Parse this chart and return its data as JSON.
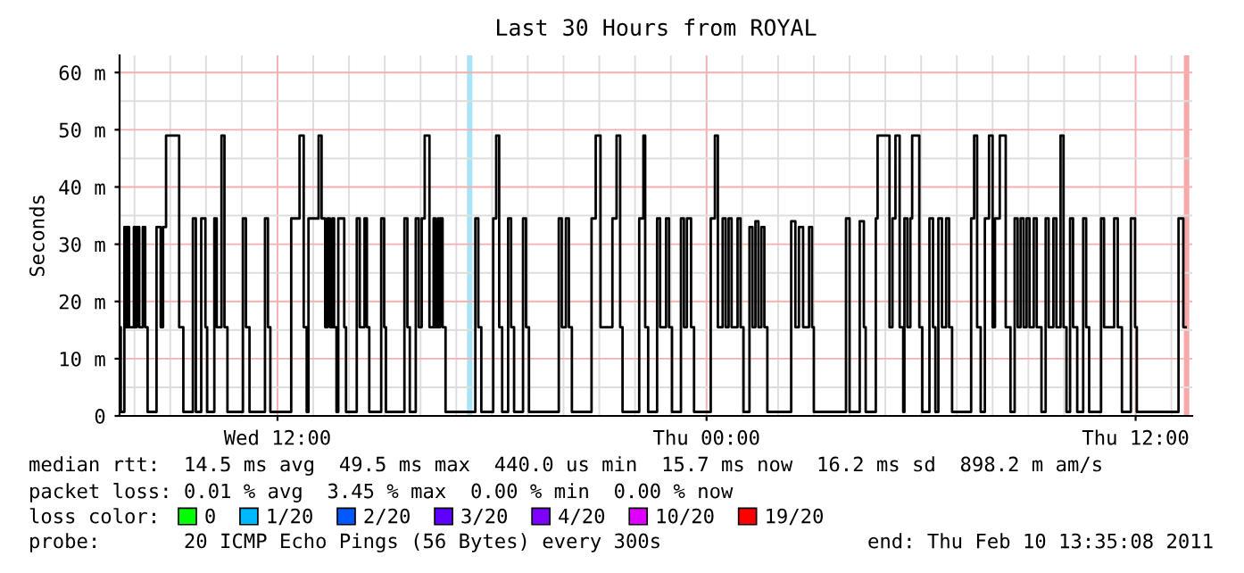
{
  "chart_data": {
    "type": "step",
    "title": "Last 30 Hours from ROYAL",
    "ylabel": "Seconds",
    "xlim": [
      "2011-02-09T07:35",
      "2011-02-10T13:35"
    ],
    "xticks": [
      {
        "value": "2011-02-09T12:00",
        "label": "Wed 12:00"
      },
      {
        "value": "2011-02-10T00:00",
        "label": "Thu 00:00"
      },
      {
        "value": "2011-02-10T12:00",
        "label": "Thu 12:00"
      }
    ],
    "ylim": [
      0,
      63
    ],
    "yticks": [
      0,
      {
        "value": 10,
        "label": "10 m"
      },
      {
        "value": 20,
        "label": "20 m"
      },
      {
        "value": 30,
        "label": "30 m"
      },
      {
        "value": 40,
        "label": "40 m"
      },
      {
        "value": 50,
        "label": "50 m"
      },
      {
        "value": 60,
        "label": "60 m"
      }
    ],
    "grid": true,
    "legend": "bottom",
    "legend_title": "loss color:",
    "bands": [
      {
        "axis": "x",
        "from": "2011-02-09T17:18",
        "to": "2011-02-09T17:27",
        "color": "#a8e4f8"
      },
      {
        "axis": "x",
        "from": "2011-02-10T13:21",
        "to": "2011-02-10T13:30",
        "color": "#f8a8a8"
      }
    ],
    "series": [
      {
        "color": "#000000",
        "x": [
          "2011-02-09T07:36",
          "2011-02-09T07:37",
          "2011-02-09T07:43",
          "2011-02-09T07:46",
          "2011-02-09T07:48",
          "2011-02-09T07:51",
          "2011-02-09T07:59",
          "2011-02-09T08:02",
          "2011-02-09T08:04",
          "2011-02-09T08:08",
          "2011-02-09T08:14",
          "2011-02-09T08:18",
          "2011-02-09T08:22",
          "2011-02-09T08:37",
          "2011-02-09T08:44",
          "2011-02-09T08:48",
          "2011-02-09T08:53",
          "2011-02-09T09:15",
          "2011-02-09T09:22",
          "2011-02-09T09:38",
          "2011-02-09T09:43",
          "2011-02-09T09:52",
          "2011-02-09T09:59",
          "2011-02-09T10:02",
          "2011-02-09T10:14",
          "2011-02-09T10:18",
          "2011-02-09T10:26",
          "2011-02-09T10:31",
          "2011-02-09T10:36",
          "2011-02-09T11:02",
          "2011-02-09T11:07",
          "2011-02-09T11:13",
          "2011-02-09T11:39",
          "2011-02-09T11:44",
          "2011-02-09T11:48",
          "2011-02-09T12:23",
          "2011-02-09T12:37",
          "2011-02-09T12:44",
          "2011-02-09T12:49",
          "2011-02-09T12:52",
          "2011-02-09T13:09",
          "2011-02-09T13:14",
          "2011-02-09T13:20",
          "2011-02-09T13:24",
          "2011-02-09T13:28",
          "2011-02-09T13:32",
          "2011-02-09T13:35",
          "2011-02-09T13:39",
          "2011-02-09T13:42",
          "2011-02-09T13:52",
          "2011-02-09T13:55",
          "2011-02-09T14:13",
          "2011-02-09T14:18",
          "2011-02-09T14:26",
          "2011-02-09T14:30",
          "2011-02-09T14:34",
          "2011-02-09T14:54",
          "2011-02-09T14:59",
          "2011-02-09T15:02",
          "2011-02-09T15:33",
          "2011-02-09T15:38",
          "2011-02-09T15:42",
          "2011-02-09T15:52",
          "2011-02-09T15:57",
          "2011-02-09T16:02",
          "2011-02-09T16:07",
          "2011-02-09T16:15",
          "2011-02-09T16:22",
          "2011-02-09T16:25",
          "2011-02-09T16:29",
          "2011-02-09T16:31",
          "2011-02-09T16:33",
          "2011-02-09T16:37",
          "2011-02-09T16:42",
          "2011-02-09T17:32",
          "2011-02-09T17:37",
          "2011-02-09T17:42",
          "2011-02-09T18:02",
          "2011-02-09T18:07",
          "2011-02-09T18:12",
          "2011-02-09T18:17",
          "2011-02-09T18:27",
          "2011-02-09T18:32",
          "2011-02-09T18:37",
          "2011-02-09T18:52",
          "2011-02-09T18:57",
          "2011-02-09T19:02",
          "2011-02-09T19:52",
          "2011-02-09T19:57",
          "2011-02-09T20:04",
          "2011-02-09T20:09",
          "2011-02-09T20:14",
          "2011-02-09T20:47",
          "2011-02-09T20:54",
          "2011-02-09T21:02",
          "2011-02-09T21:22",
          "2011-02-09T21:29",
          "2011-02-09T21:35",
          "2011-02-09T21:39",
          "2011-02-09T22:07",
          "2011-02-09T22:14",
          "2011-02-09T22:17",
          "2011-02-09T22:22",
          "2011-02-09T22:37",
          "2011-02-09T22:42",
          "2011-02-09T22:52",
          "2011-02-09T22:57",
          "2011-02-09T23:02",
          "2011-02-09T23:17",
          "2011-02-09T23:22",
          "2011-02-09T23:27",
          "2011-02-09T23:34",
          "2011-02-09T23:39",
          "2011-02-10T00:07",
          "2011-02-10T00:14",
          "2011-02-10T00:19",
          "2011-02-10T00:27",
          "2011-02-10T00:32",
          "2011-02-10T00:37",
          "2011-02-10T00:42",
          "2011-02-10T00:52",
          "2011-02-10T00:57",
          "2011-02-10T01:02",
          "2011-02-10T01:12",
          "2011-02-10T01:17",
          "2011-02-10T01:22",
          "2011-02-10T01:27",
          "2011-02-10T01:32",
          "2011-02-10T01:37",
          "2011-02-10T01:42",
          "2011-02-10T02:22",
          "2011-02-10T02:29",
          "2011-02-10T02:35",
          "2011-02-10T02:42",
          "2011-02-10T02:52",
          "2011-02-10T02:57",
          "2011-02-10T03:00",
          "2011-02-10T03:54",
          "2011-02-10T04:00",
          "2011-02-10T04:17",
          "2011-02-10T04:24",
          "2011-02-10T04:27",
          "2011-02-10T04:44",
          "2011-02-10T04:47",
          "2011-02-10T05:07",
          "2011-02-10T05:12",
          "2011-02-10T05:17",
          "2011-02-10T05:24",
          "2011-02-10T05:30",
          "2011-02-10T05:32",
          "2011-02-10T05:37",
          "2011-02-10T05:42",
          "2011-02-10T05:45",
          "2011-02-10T05:57",
          "2011-02-10T06:02",
          "2011-02-10T06:14",
          "2011-02-10T06:20",
          "2011-02-10T06:24",
          "2011-02-10T06:29",
          "2011-02-10T06:35",
          "2011-02-10T06:42",
          "2011-02-10T06:47",
          "2011-02-10T06:52",
          "2011-02-10T07:24",
          "2011-02-10T07:29",
          "2011-02-10T07:34",
          "2011-02-10T07:40",
          "2011-02-10T07:47",
          "2011-02-10T07:54",
          "2011-02-10T08:00",
          "2011-02-10T08:04",
          "2011-02-10T08:12",
          "2011-02-10T08:22",
          "2011-02-10T08:30",
          "2011-02-10T08:37",
          "2011-02-10T08:42",
          "2011-02-10T08:47",
          "2011-02-10T08:52",
          "2011-02-10T08:57",
          "2011-02-10T09:02",
          "2011-02-10T09:09",
          "2011-02-10T09:14",
          "2011-02-10T09:22",
          "2011-02-10T09:29",
          "2011-02-10T09:34",
          "2011-02-10T09:42",
          "2011-02-10T09:47",
          "2011-02-10T09:54",
          "2011-02-10T09:59",
          "2011-02-10T10:04",
          "2011-02-10T10:10",
          "2011-02-10T10:15",
          "2011-02-10T10:22",
          "2011-02-10T10:32",
          "2011-02-10T10:37",
          "2011-02-10T10:42",
          "2011-02-10T11:02",
          "2011-02-10T11:07",
          "2011-02-10T11:24",
          "2011-02-10T11:30",
          "2011-02-10T11:37",
          "2011-02-10T11:52",
          "2011-02-10T11:59",
          "2011-02-10T12:02",
          "2011-02-10T13:12",
          "2011-02-10T13:20",
          "2011-02-10T13:24"
        ],
        "values": [
          15.5,
          0.7,
          33,
          15.5,
          33,
          15.5,
          33,
          15.5,
          33,
          15.5,
          33,
          15.5,
          0.7,
          33,
          15.5,
          33,
          49,
          15.5,
          0.7,
          34.5,
          0.7,
          34.5,
          15.5,
          0.7,
          34.5,
          15.5,
          49,
          15.5,
          0.7,
          34.5,
          15.5,
          0.7,
          34.5,
          15.5,
          0.7,
          34.5,
          49,
          15.5,
          0.7,
          34.5,
          49,
          34.5,
          15.5,
          34.5,
          15.5,
          34.5,
          15.5,
          0.7,
          34.5,
          15.5,
          0.7,
          34.5,
          15.5,
          34.5,
          15.5,
          0.7,
          34.5,
          15.5,
          0.7,
          34.5,
          15.5,
          0.7,
          34.5,
          15.5,
          34.5,
          49,
          15.5,
          34.5,
          15.5,
          34.5,
          15.5,
          34.5,
          15.5,
          0.7,
          34.5,
          15.5,
          0.7,
          34.5,
          49,
          15.5,
          0.7,
          34.5,
          15.5,
          0.7,
          34.5,
          15.5,
          0.7,
          34.5,
          15.5,
          34.5,
          15.5,
          0.7,
          34.5,
          49,
          15.5,
          34.5,
          49,
          15.5,
          0.7,
          34.5,
          49,
          15.5,
          0.7,
          34.5,
          15.5,
          34.5,
          15.5,
          0.7,
          34.5,
          15.5,
          34.5,
          15.5,
          0.7,
          34.5,
          49,
          15.5,
          34.5,
          15.5,
          34.5,
          15.5,
          34.5,
          15.5,
          0.7,
          33,
          15.5,
          34,
          15.5,
          33,
          15.5,
          0.7,
          34,
          15.5,
          33,
          15.5,
          33,
          15.5,
          0.7,
          34.5,
          0.7,
          34,
          15.5,
          0.7,
          34.5,
          49,
          15.5,
          34.5,
          49,
          15.5,
          0.7,
          34.5,
          15.5,
          34.5,
          49,
          15.5,
          0.7,
          34.5,
          15.5,
          0.7,
          34.5,
          15.5,
          34.5,
          15.5,
          0.7,
          34.5,
          49,
          15.5,
          0.7,
          34.5,
          49,
          15.5,
          34.5,
          49,
          15.5,
          0.7,
          34.5,
          15.5,
          34.5,
          15.5,
          34.5,
          15.5,
          34.5,
          15.5,
          0.7,
          34.5,
          15.5,
          34.5,
          15.5,
          49,
          15.5,
          0.7,
          34.5,
          15.5,
          0.7,
          34.5,
          15.5,
          0.7,
          34.5,
          15.5,
          34.5,
          15.5,
          0.7,
          34.5,
          15.5,
          0.7,
          34.5,
          15.5,
          15.5
        ]
      },
      {
        "name": "0",
        "color": "#00ff00"
      },
      {
        "name": "1/20",
        "color": "#00b8ff"
      },
      {
        "name": "2/20",
        "color": "#0059ff"
      },
      {
        "name": "3/20",
        "color": "#5e00ff"
      },
      {
        "name": "4/20",
        "color": "#7e00ff"
      },
      {
        "name": "10/20",
        "color": "#dd00ff"
      },
      {
        "name": "19/20",
        "color": "#ff0000"
      }
    ],
    "annotations": [
      "median rtt:  14.5 ms avg  49.5 ms max  440.0 us min  15.7 ms now  16.2 ms sd  898.2 m am/s",
      "packet loss: 0.01 % avg  3.45 % max  0.00 % min  0.00 % now",
      "probe:       20 ICMP Echo Pings (56 Bytes) every 300s",
      "end: Thu Feb 10 13:35:08 2011"
    ]
  }
}
